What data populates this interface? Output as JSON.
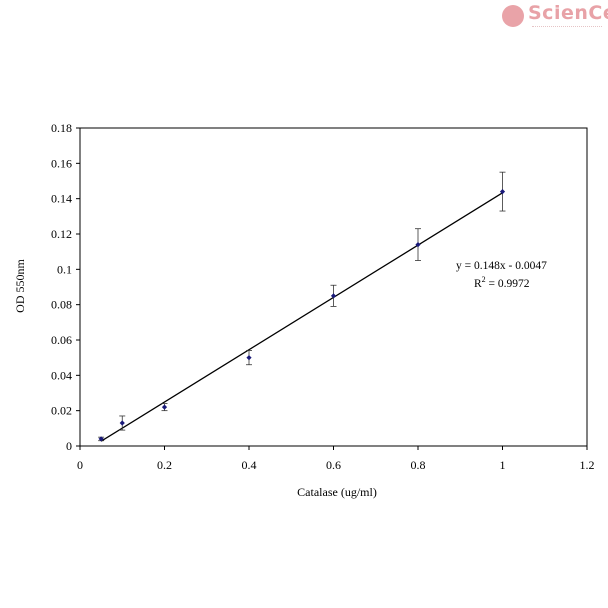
{
  "logo": {
    "text": "ScienCell"
  },
  "chart_data": {
    "type": "scatter",
    "xlabel": "Catalase (ug/ml)",
    "ylabel": "OD 550nm",
    "xlim": [
      0,
      1.2
    ],
    "ylim": [
      0,
      0.18
    ],
    "x_ticks": [
      "0",
      "0.2",
      "0.4",
      "0.6",
      "0.8",
      "1",
      "1.2"
    ],
    "y_ticks": [
      "0",
      "0.02",
      "0.04",
      "0.06",
      "0.08",
      "0.1",
      "0.12",
      "0.14",
      "0.16",
      "0.18"
    ],
    "grid": false,
    "series": [
      {
        "points": [
          {
            "x": 0.05,
            "y": 0.004,
            "err": 0.001
          },
          {
            "x": 0.1,
            "y": 0.013,
            "err": 0.004
          },
          {
            "x": 0.2,
            "y": 0.022,
            "err": 0.002
          },
          {
            "x": 0.4,
            "y": 0.05,
            "err": 0.004
          },
          {
            "x": 0.6,
            "y": 0.085,
            "err": 0.006
          },
          {
            "x": 0.8,
            "y": 0.114,
            "err": 0.009
          },
          {
            "x": 1.0,
            "y": 0.144,
            "err": 0.011
          }
        ],
        "color": "#1a1a7a"
      }
    ],
    "trendline": {
      "slope": 0.148,
      "intercept": -0.0047,
      "x_range": [
        0.05,
        1.0
      ]
    },
    "annotation": {
      "equation": "y = 0.148x - 0.0047",
      "r2_prefix": "R",
      "r2_sup": "2",
      "r2_value": " = 0.9972"
    }
  }
}
